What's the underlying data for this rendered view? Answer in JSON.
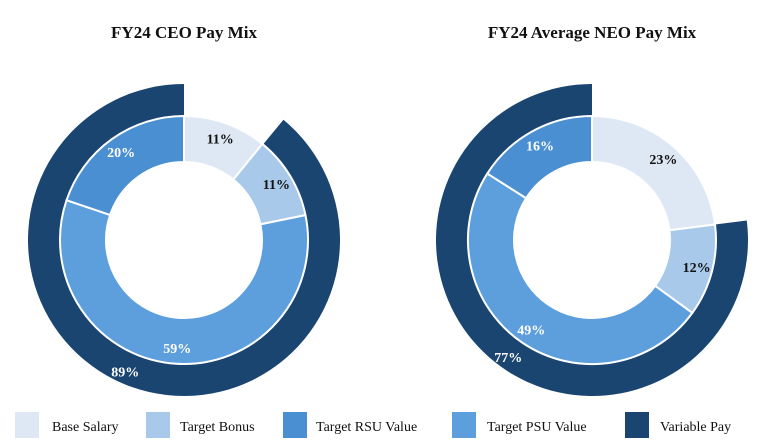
{
  "colors": {
    "base_salary": "#dde8f4",
    "target_bonus": "#a8c9ea",
    "target_rsu": "#4a8fd1",
    "target_psu": "#5d9fdc",
    "variable_pay": "#1a4570",
    "slice_border": "#ffffff",
    "label_dark": "#111111",
    "label_light": "#ffffff"
  },
  "legend": [
    {
      "key": "base_salary",
      "label": "Base Salary"
    },
    {
      "key": "target_bonus",
      "label": "Target Bonus"
    },
    {
      "key": "target_rsu",
      "label": "Target RSU Value"
    },
    {
      "key": "target_psu",
      "label": "Target PSU Value"
    },
    {
      "key": "variable_pay",
      "label": "Variable Pay"
    }
  ],
  "chart_data": [
    {
      "type": "pie",
      "subtype": "nested-donut",
      "title": "FY24 CEO Pay Mix",
      "inner_ring": [
        {
          "key": "base_salary",
          "label": "Base Salary",
          "value": 11,
          "display": "11%"
        },
        {
          "key": "target_bonus",
          "label": "Target Bonus",
          "value": 11,
          "display": "11%"
        },
        {
          "key": "target_psu",
          "label": "Target PSU Value",
          "value": 59,
          "display": "59%"
        },
        {
          "key": "target_rsu",
          "label": "Target RSU Value",
          "value": 20,
          "display": "20%"
        }
      ],
      "outer_ring": [
        {
          "key": "variable_pay",
          "label": "Variable Pay",
          "value": 89,
          "display": "89%"
        }
      ]
    },
    {
      "type": "pie",
      "subtype": "nested-donut",
      "title": "FY24 Average NEO Pay Mix",
      "inner_ring": [
        {
          "key": "base_salary",
          "label": "Base Salary",
          "value": 23,
          "display": "23%"
        },
        {
          "key": "target_bonus",
          "label": "Target Bonus",
          "value": 12,
          "display": "12%"
        },
        {
          "key": "target_psu",
          "label": "Target PSU Value",
          "value": 49,
          "display": "49%"
        },
        {
          "key": "target_rsu",
          "label": "Target RSU Value",
          "value": 16,
          "display": "16%"
        }
      ],
      "outer_ring": [
        {
          "key": "variable_pay",
          "label": "Variable Pay",
          "value": 77,
          "display": "77%"
        }
      ]
    }
  ]
}
